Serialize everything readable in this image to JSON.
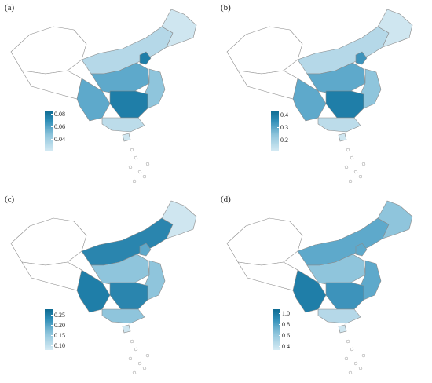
{
  "panels": [
    {
      "id": "a",
      "label": "(a)",
      "legend_ticks": [
        "0.08",
        "0.06",
        "0.04"
      ],
      "fills": {
        "west": "#ffffff",
        "tibet": "#ffffff",
        "north": "#b5d8e8",
        "northeast": "#cfe6f0",
        "central": "#5ea9cb",
        "south": "#bcdcea",
        "sw": "#5ea9cb",
        "east": "#8fc5dc",
        "core": "#1f7ea8",
        "capital": "#1f7ea8",
        "island": "#cfe6f0"
      }
    },
    {
      "id": "b",
      "label": "(b)",
      "legend_ticks": [
        "0.4",
        "0.3",
        "0.2"
      ],
      "fills": {
        "west": "#ffffff",
        "tibet": "#ffffff",
        "north": "#b5d8e8",
        "northeast": "#cfe6f0",
        "central": "#5ea9cb",
        "south": "#bcdcea",
        "sw": "#5ea9cb",
        "east": "#8fc5dc",
        "core": "#1f7ea8",
        "capital": "#3d93bb",
        "island": "#cfe6f0"
      }
    },
    {
      "id": "c",
      "label": "(c)",
      "legend_ticks": [
        "0.25",
        "0.20",
        "0.15",
        "0.10"
      ],
      "fills": {
        "west": "#ffffff",
        "tibet": "#ffffff",
        "north": "#2a85ae",
        "northeast": "#cfe6f0",
        "central": "#8fc5dc",
        "south": "#8fc5dc",
        "sw": "#1f7ea8",
        "east": "#8fc5dc",
        "core": "#2a85ae",
        "capital": "#5ea9cb",
        "island": "#cfe6f0"
      }
    },
    {
      "id": "d",
      "label": "(d)",
      "legend_ticks": [
        "1.0",
        "0.8",
        "0.6",
        "0.4"
      ],
      "fills": {
        "west": "#ffffff",
        "tibet": "#ffffff",
        "north": "#5ea9cb",
        "northeast": "#8fc5dc",
        "central": "#8fc5dc",
        "south": "#b5d8e8",
        "sw": "#1f7ea8",
        "east": "#5ea9cb",
        "core": "#3d93bb",
        "capital": "#5ea9cb",
        "island": "#cfe6f0"
      }
    }
  ]
}
